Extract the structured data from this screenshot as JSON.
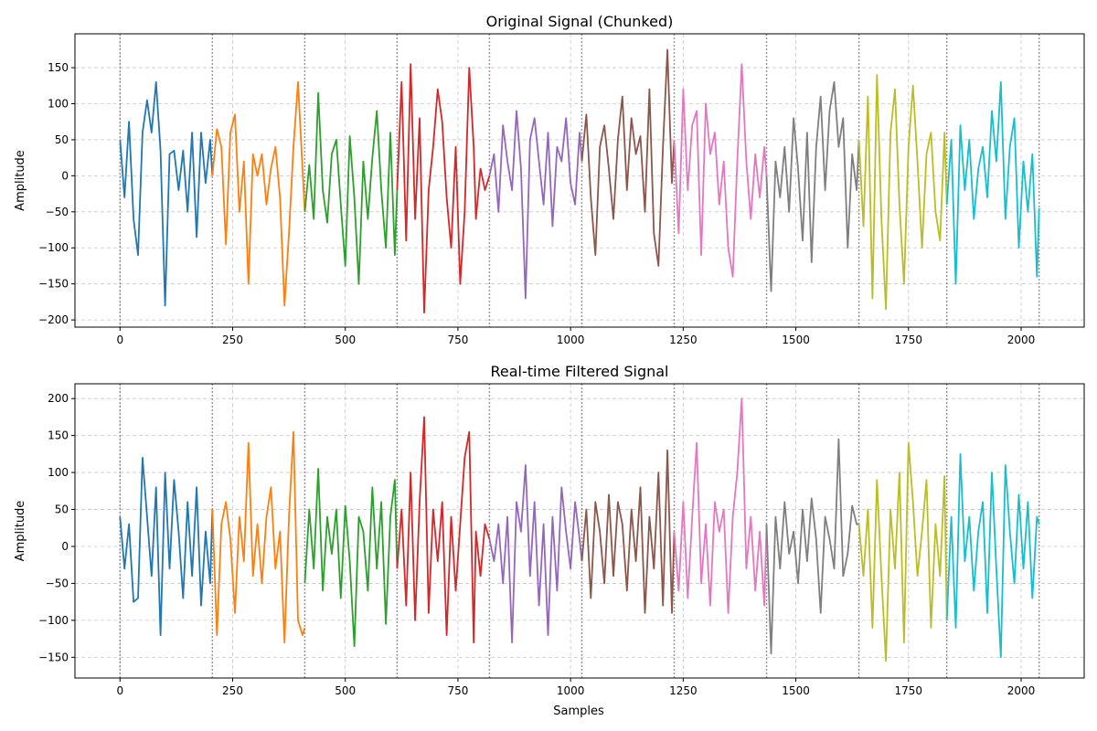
{
  "figure": {
    "xlabel": "Samples"
  },
  "chart_data": [
    {
      "type": "line",
      "title": "Original Signal (Chunked)",
      "xlabel": "",
      "ylabel": "Amplitude",
      "xlim": [
        -100,
        2140
      ],
      "ylim": [
        -210,
        197
      ],
      "xticks": [
        0,
        250,
        500,
        750,
        1000,
        1250,
        1500,
        1750,
        2000
      ],
      "yticks": [
        -200,
        -150,
        -100,
        -50,
        0,
        50,
        100,
        150
      ],
      "grid": true,
      "chunk_boundaries": [
        0,
        205,
        410,
        615,
        820,
        1025,
        1230,
        1435,
        1640,
        1835,
        2040
      ],
      "chunk_colors": [
        "#1f77b4",
        "#ff7f0e",
        "#2ca02c",
        "#d62728",
        "#9467bd",
        "#8c564b",
        "#e377c2",
        "#7f7f7f",
        "#bcbd22",
        "#17becf"
      ],
      "series": [
        {
          "x": [
            0,
            10,
            20,
            30,
            40,
            50,
            60,
            70,
            80,
            90,
            100,
            110,
            120,
            130,
            140,
            150,
            160,
            170,
            180,
            190,
            200,
            205
          ],
          "values": [
            50,
            -30,
            75,
            -60,
            -110,
            60,
            105,
            60,
            130,
            35,
            -180,
            30,
            35,
            -20,
            35,
            -50,
            60,
            -85,
            60,
            -10,
            50,
            0
          ]
        },
        {
          "x": [
            205,
            215,
            225,
            235,
            245,
            255,
            265,
            275,
            285,
            295,
            305,
            315,
            325,
            335,
            345,
            355,
            365,
            375,
            385,
            395,
            405,
            410
          ],
          "values": [
            0,
            65,
            40,
            -95,
            60,
            85,
            -50,
            20,
            -150,
            30,
            0,
            30,
            -40,
            10,
            40,
            -30,
            -180,
            -80,
            40,
            130,
            10,
            -50
          ]
        },
        {
          "x": [
            410,
            420,
            430,
            440,
            450,
            460,
            470,
            480,
            490,
            500,
            510,
            520,
            530,
            540,
            550,
            560,
            570,
            580,
            590,
            600,
            610,
            615
          ],
          "values": [
            -50,
            15,
            -60,
            115,
            -20,
            -65,
            30,
            50,
            -40,
            -125,
            55,
            -30,
            -150,
            20,
            -60,
            25,
            90,
            -20,
            -100,
            60,
            -110,
            -20
          ]
        },
        {
          "x": [
            615,
            625,
            635,
            645,
            655,
            665,
            675,
            685,
            695,
            705,
            715,
            725,
            735,
            745,
            755,
            765,
            775,
            785,
            790,
            800,
            810,
            820
          ],
          "values": [
            -20,
            130,
            -90,
            155,
            -60,
            80,
            -190,
            -20,
            40,
            120,
            75,
            -30,
            -100,
            40,
            -150,
            -50,
            150,
            40,
            -60,
            10,
            -20,
            0
          ]
        },
        {
          "x": [
            820,
            830,
            840,
            850,
            860,
            870,
            880,
            890,
            900,
            910,
            920,
            930,
            940,
            950,
            960,
            970,
            980,
            990,
            1000,
            1010,
            1020,
            1025
          ],
          "values": [
            0,
            30,
            -50,
            70,
            20,
            -20,
            90,
            10,
            -170,
            50,
            80,
            20,
            -40,
            60,
            -70,
            40,
            20,
            80,
            -10,
            -40,
            60,
            20
          ]
        },
        {
          "x": [
            1025,
            1035,
            1045,
            1055,
            1065,
            1075,
            1085,
            1095,
            1105,
            1115,
            1125,
            1135,
            1145,
            1155,
            1165,
            1175,
            1185,
            1195,
            1205,
            1215,
            1225,
            1230
          ],
          "values": [
            20,
            85,
            -30,
            -110,
            40,
            70,
            10,
            -60,
            50,
            110,
            -20,
            80,
            30,
            55,
            -50,
            120,
            -80,
            -125,
            40,
            175,
            -10,
            50
          ]
        },
        {
          "x": [
            1230,
            1240,
            1250,
            1260,
            1270,
            1280,
            1290,
            1300,
            1310,
            1320,
            1330,
            1340,
            1350,
            1360,
            1370,
            1380,
            1390,
            1400,
            1410,
            1420,
            1430,
            1435
          ],
          "values": [
            50,
            -80,
            120,
            -20,
            70,
            90,
            -110,
            100,
            30,
            60,
            -40,
            20,
            -100,
            -140,
            20,
            155,
            20,
            -60,
            30,
            -30,
            40,
            0
          ]
        },
        {
          "x": [
            1435,
            1445,
            1455,
            1465,
            1475,
            1485,
            1495,
            1505,
            1515,
            1525,
            1535,
            1545,
            1555,
            1565,
            1575,
            1585,
            1595,
            1605,
            1615,
            1625,
            1635,
            1640
          ],
          "values": [
            0,
            -160,
            20,
            -30,
            40,
            -50,
            80,
            10,
            -90,
            60,
            -120,
            40,
            110,
            -20,
            90,
            130,
            40,
            80,
            -100,
            30,
            -20,
            50
          ]
        },
        {
          "x": [
            1640,
            1650,
            1660,
            1670,
            1680,
            1690,
            1700,
            1710,
            1720,
            1730,
            1740,
            1750,
            1760,
            1770,
            1780,
            1790,
            1800,
            1810,
            1820,
            1830,
            1835
          ],
          "values": [
            50,
            -70,
            110,
            -170,
            140,
            -60,
            -185,
            60,
            120,
            -40,
            -150,
            40,
            125,
            20,
            -100,
            30,
            60,
            -50,
            -90,
            60,
            -40
          ]
        },
        {
          "x": [
            1835,
            1845,
            1855,
            1865,
            1875,
            1885,
            1895,
            1905,
            1915,
            1925,
            1935,
            1945,
            1955,
            1965,
            1975,
            1985,
            1995,
            2005,
            2015,
            2025,
            2035,
            2040
          ],
          "values": [
            -40,
            50,
            -150,
            70,
            -20,
            50,
            -60,
            10,
            40,
            -30,
            90,
            20,
            130,
            -60,
            40,
            80,
            -100,
            20,
            -50,
            30,
            -140,
            -45
          ]
        }
      ]
    },
    {
      "type": "line",
      "title": "Real-time Filtered Signal",
      "xlabel": "Samples",
      "ylabel": "Amplitude",
      "xlim": [
        -100,
        2140
      ],
      "ylim": [
        -178,
        220
      ],
      "xticks": [
        0,
        250,
        500,
        750,
        1000,
        1250,
        1500,
        1750,
        2000
      ],
      "yticks": [
        -150,
        -100,
        -50,
        0,
        50,
        100,
        150,
        200
      ],
      "grid": true,
      "chunk_boundaries": [
        0,
        205,
        410,
        615,
        820,
        1025,
        1230,
        1435,
        1640,
        1835,
        2040
      ],
      "chunk_colors": [
        "#1f77b4",
        "#ff7f0e",
        "#2ca02c",
        "#d62728",
        "#9467bd",
        "#8c564b",
        "#e377c2",
        "#7f7f7f",
        "#bcbd22",
        "#17becf"
      ],
      "series": [
        {
          "x": [
            0,
            10,
            20,
            30,
            40,
            50,
            60,
            70,
            80,
            90,
            100,
            110,
            120,
            130,
            140,
            150,
            160,
            170,
            180,
            190,
            200,
            205
          ],
          "values": [
            40,
            -30,
            30,
            -75,
            -70,
            120,
            40,
            -40,
            80,
            -120,
            100,
            -30,
            90,
            20,
            -70,
            60,
            -40,
            80,
            -80,
            20,
            -50,
            50
          ]
        },
        {
          "x": [
            205,
            215,
            225,
            235,
            245,
            255,
            265,
            275,
            285,
            295,
            305,
            315,
            325,
            335,
            345,
            355,
            365,
            375,
            385,
            395,
            405,
            410
          ],
          "values": [
            50,
            -120,
            30,
            60,
            10,
            -90,
            40,
            -20,
            140,
            -40,
            30,
            -50,
            40,
            80,
            -30,
            20,
            -130,
            40,
            155,
            -100,
            -120,
            -110
          ]
        },
        {
          "x": [
            410,
            420,
            430,
            440,
            450,
            460,
            470,
            480,
            490,
            500,
            510,
            520,
            530,
            540,
            550,
            560,
            570,
            580,
            590,
            600,
            610,
            615
          ],
          "values": [
            -50,
            50,
            -30,
            105,
            -60,
            40,
            -10,
            50,
            -70,
            55,
            -20,
            -135,
            40,
            20,
            -60,
            80,
            -30,
            60,
            -105,
            40,
            90,
            -30
          ]
        },
        {
          "x": [
            615,
            625,
            635,
            645,
            655,
            665,
            675,
            685,
            695,
            705,
            715,
            725,
            735,
            745,
            755,
            765,
            775,
            785,
            790,
            800,
            810,
            820
          ],
          "values": [
            -30,
            50,
            -80,
            100,
            -100,
            60,
            175,
            -90,
            50,
            -20,
            60,
            -120,
            40,
            -60,
            30,
            120,
            155,
            -130,
            20,
            -40,
            30,
            10
          ]
        },
        {
          "x": [
            820,
            830,
            840,
            850,
            860,
            870,
            880,
            890,
            900,
            910,
            920,
            930,
            940,
            950,
            960,
            970,
            980,
            990,
            1000,
            1010,
            1020,
            1025
          ],
          "values": [
            10,
            -20,
            30,
            -50,
            40,
            -130,
            60,
            20,
            110,
            -40,
            60,
            -80,
            30,
            -120,
            40,
            -60,
            80,
            20,
            -30,
            60,
            10,
            -20
          ]
        },
        {
          "x": [
            1025,
            1035,
            1045,
            1055,
            1065,
            1075,
            1085,
            1095,
            1105,
            1115,
            1125,
            1135,
            1145,
            1155,
            1165,
            1175,
            1185,
            1195,
            1205,
            1215,
            1225,
            1230
          ],
          "values": [
            -20,
            50,
            -70,
            60,
            20,
            -50,
            70,
            -40,
            60,
            30,
            -60,
            50,
            -20,
            80,
            -90,
            40,
            -30,
            100,
            -80,
            130,
            -90,
            20
          ]
        },
        {
          "x": [
            1230,
            1240,
            1250,
            1260,
            1270,
            1280,
            1290,
            1300,
            1310,
            1320,
            1330,
            1340,
            1350,
            1360,
            1370,
            1380,
            1390,
            1400,
            1410,
            1420,
            1430,
            1435
          ],
          "values": [
            20,
            -60,
            60,
            -70,
            40,
            140,
            -50,
            30,
            -80,
            60,
            20,
            50,
            -90,
            40,
            100,
            200,
            -30,
            40,
            -60,
            20,
            -80,
            30
          ]
        },
        {
          "x": [
            1435,
            1445,
            1455,
            1465,
            1475,
            1485,
            1495,
            1505,
            1515,
            1525,
            1535,
            1545,
            1555,
            1565,
            1575,
            1585,
            1595,
            1605,
            1615,
            1625,
            1635,
            1640
          ],
          "values": [
            30,
            -145,
            40,
            -30,
            60,
            -10,
            20,
            -50,
            50,
            -20,
            65,
            10,
            -90,
            40,
            10,
            -30,
            145,
            -40,
            -10,
            55,
            30,
            30
          ]
        },
        {
          "x": [
            1640,
            1650,
            1660,
            1670,
            1680,
            1690,
            1700,
            1710,
            1720,
            1730,
            1740,
            1750,
            1760,
            1770,
            1780,
            1790,
            1800,
            1810,
            1820,
            1830,
            1835
          ],
          "values": [
            30,
            -40,
            50,
            -110,
            90,
            -40,
            -155,
            50,
            -30,
            100,
            -130,
            140,
            60,
            -40,
            20,
            90,
            -110,
            30,
            -40,
            95,
            -100
          ]
        },
        {
          "x": [
            1835,
            1845,
            1855,
            1865,
            1875,
            1885,
            1895,
            1905,
            1915,
            1925,
            1935,
            1945,
            1955,
            1965,
            1975,
            1985,
            1995,
            2005,
            2015,
            2025,
            2035,
            2040
          ],
          "values": [
            -100,
            40,
            -110,
            125,
            -20,
            40,
            -60,
            20,
            60,
            -90,
            100,
            -30,
            -150,
            110,
            20,
            -50,
            70,
            -30,
            60,
            -70,
            40,
            30
          ]
        }
      ]
    }
  ]
}
